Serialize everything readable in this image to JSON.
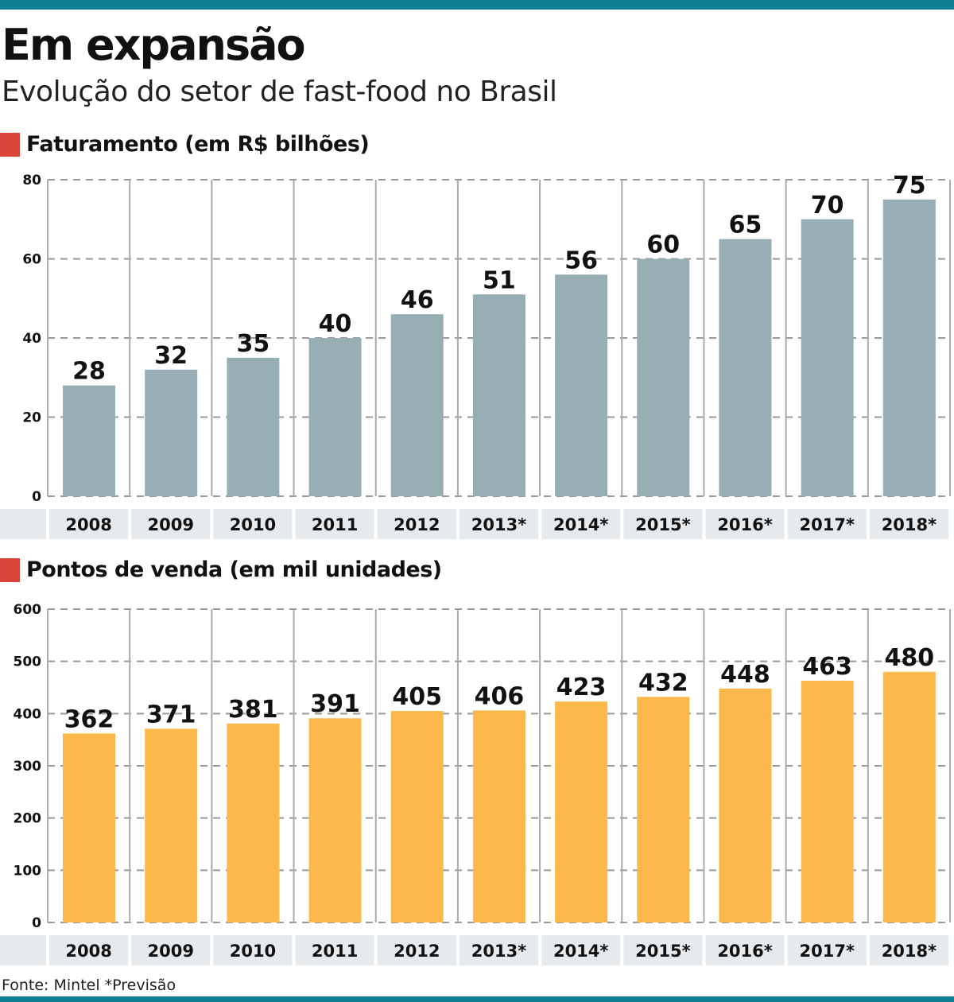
{
  "header": {
    "title": "Em expansão",
    "subtitle": "Evolução do setor de fast-food no Brasil"
  },
  "colors": {
    "accent_bar": "#0e7d96",
    "section_marker": "#d8443a",
    "bar_revenue": "#97aeb5",
    "bar_outlets": "#fbb84b",
    "category_band": "#e7eaed"
  },
  "footer": {
    "source": "Fonte: Mintel *Previsão"
  },
  "chart_data": [
    {
      "type": "bar",
      "title": "Faturamento (em R$ bilhões)",
      "xlabel": "",
      "ylabel": "",
      "categories": [
        "2008",
        "2009",
        "2010",
        "2011",
        "2012",
        "2013*",
        "2014*",
        "2015*",
        "2016*",
        "2017*",
        "2018*"
      ],
      "values": [
        28,
        32,
        35,
        40,
        46,
        51,
        56,
        60,
        65,
        70,
        75
      ],
      "ylim": [
        0,
        80
      ],
      "yticks": [
        0,
        20,
        40,
        60,
        80
      ],
      "grid": true,
      "data_labels": true
    },
    {
      "type": "bar",
      "title": "Pontos de venda (em mil unidades)",
      "xlabel": "",
      "ylabel": "",
      "categories": [
        "2008",
        "2009",
        "2010",
        "2011",
        "2012",
        "2013*",
        "2014*",
        "2015*",
        "2016*",
        "2017*",
        "2018*"
      ],
      "values": [
        362,
        371,
        381,
        391,
        405,
        406,
        423,
        432,
        448,
        463,
        480
      ],
      "ylim": [
        0,
        600
      ],
      "yticks": [
        0,
        100,
        200,
        300,
        400,
        500,
        600
      ],
      "grid": true,
      "data_labels": true
    }
  ]
}
